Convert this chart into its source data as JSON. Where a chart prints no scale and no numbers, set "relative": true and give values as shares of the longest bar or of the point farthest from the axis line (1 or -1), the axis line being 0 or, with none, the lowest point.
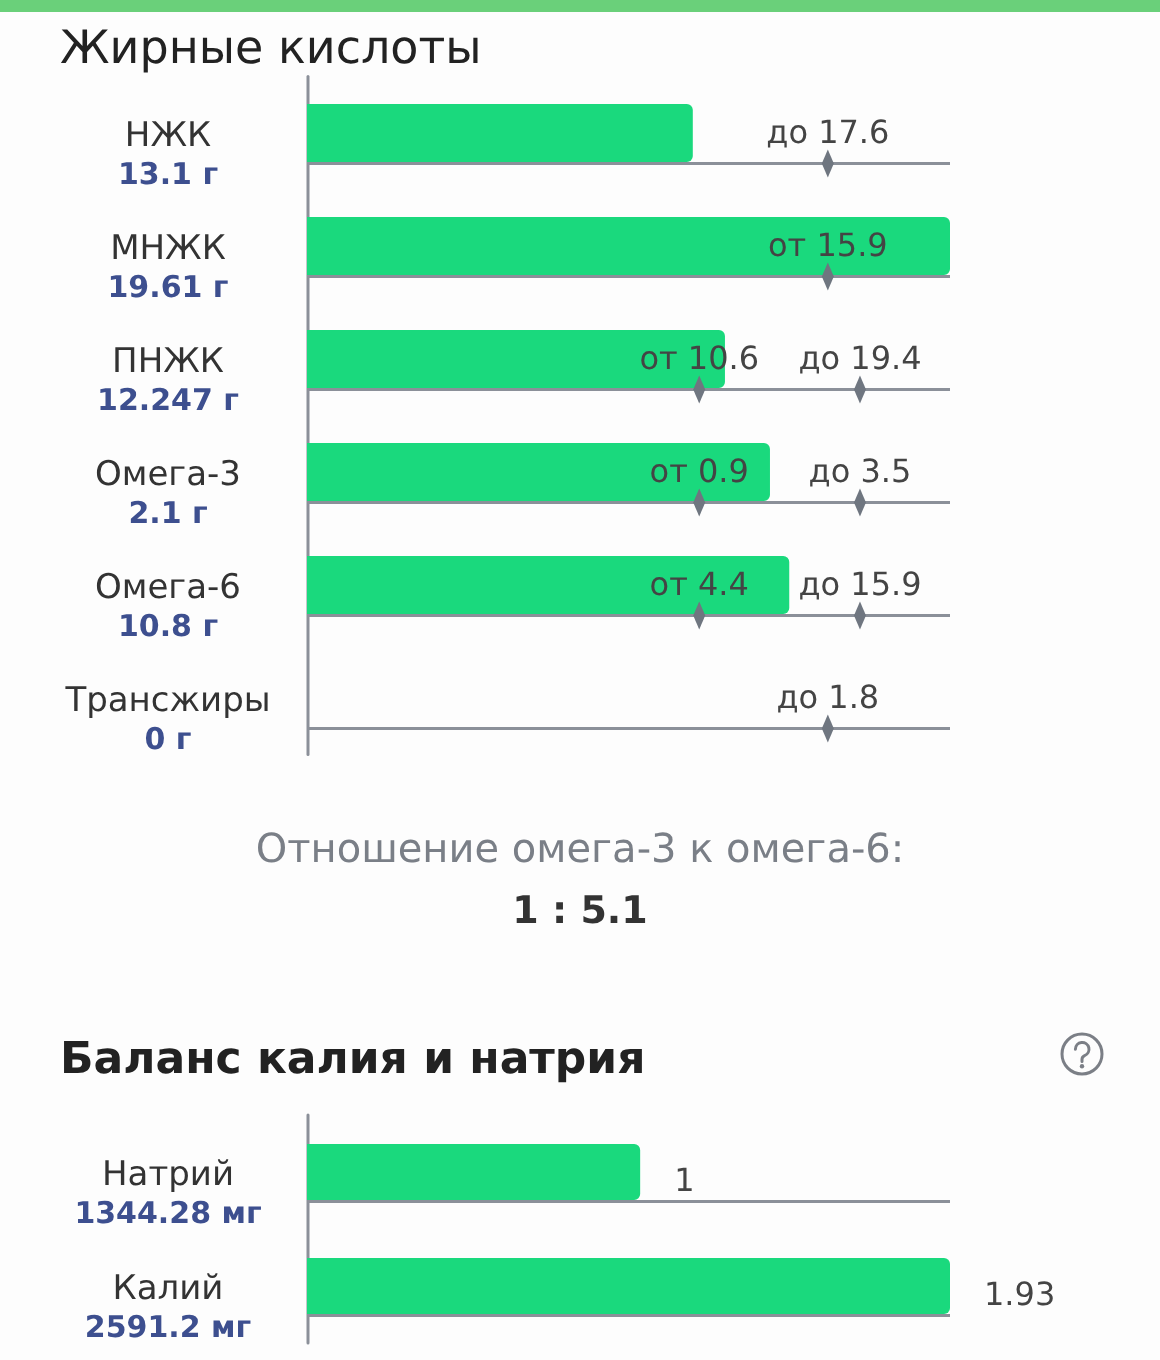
{
  "chart_data": [
    {
      "type": "bar",
      "orientation": "horizontal",
      "relative": true,
      "title": "Жирные кислоты",
      "categories": [
        "НЖК\n13.1 г",
        "МНЖК\n19.61 г",
        "ПНЖК\n12.247 г",
        "Омега-3\n2.1 г",
        "Омега-6\n10.8 г",
        "Трансжиры\n0 г"
      ],
      "grid": "y",
      "series": [
        {
          "values": [
            0.6,
            1,
            0.65,
            0.72,
            0.75,
            0
          ],
          "color": "#1ad97d"
        },
        {
          "type": "scatter",
          "x": [
            "НЖК\n13.1 г",
            "МНЖК\n19.61 г",
            "ПНЖК\n12.247 г",
            "ПНЖК\n12.247 г",
            "Омега-3\n2.1 г",
            "Омега-3\n2.1 г",
            "Омега-6\n10.8 г",
            "Омега-6\n10.8 г",
            "Трансжиры\n0 г"
          ],
          "values": [
            0.81,
            0.81,
            0.61,
            0.86,
            0.61,
            0.86,
            0.61,
            0.86,
            0.81
          ],
          "color": "#6f7680"
        }
      ],
      "annotations": [
        {
          "text": "до 17.6",
          "x": 0.81,
          "y": "НЖК\n13.1 г"
        },
        {
          "text": "от 15.9",
          "x": 0.81,
          "y": "МНЖК\n19.61 г"
        },
        {
          "text": "от 10.6",
          "x": 0.61,
          "y": "ПНЖК\n12.247 г"
        },
        {
          "text": "до 19.4",
          "x": 0.86,
          "y": "ПНЖК\n12.247 г"
        },
        {
          "text": "от 0.9",
          "x": 0.61,
          "y": "Омега-3\n2.1 г"
        },
        {
          "text": "до 3.5",
          "x": 0.86,
          "y": "Омега-3\n2.1 г"
        },
        {
          "text": "от 4.4",
          "x": 0.61,
          "y": "Омега-6\n10.8 г"
        },
        {
          "text": "до 15.9",
          "x": 0.86,
          "y": "Омега-6\n10.8 г"
        },
        {
          "text": "до 1.8",
          "x": 0.81,
          "y": "Трансжиры\n0 г"
        },
        "Отношение омега-3 к омега-6:",
        "1 : 5.1"
      ]
    },
    {
      "type": "bar",
      "orientation": "horizontal",
      "title": "Баланс калия и натрия",
      "categories": [
        "Натрий\n1344.28 мг",
        "Калий\n2591.2 мг"
      ],
      "values": [
        1,
        1.93
      ],
      "color": "#1ad97d",
      "data_labels": true,
      "grid": "y",
      "tick_labels": "y"
    }
  ]
}
